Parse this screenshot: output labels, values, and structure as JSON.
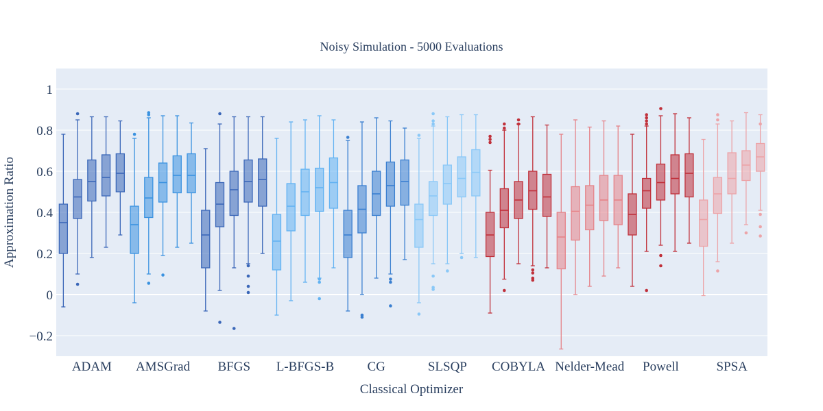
{
  "chart_data": {
    "type": "box",
    "title": "Noisy Simulation - 5000 Evaluations",
    "xlabel": "Classical Optimizer",
    "ylabel": "Approximation Ratio",
    "ylim": [
      -0.3,
      1.1
    ],
    "yticks": [
      -0.2,
      0,
      0.2,
      0.4,
      0.6,
      0.8,
      1
    ],
    "ytick_labels": [
      "−0.2",
      "0",
      "0.2",
      "0.4",
      "0.6",
      "0.8",
      "1"
    ],
    "grid": true,
    "background": "#e5ecf6",
    "categories": [
      "ADAM",
      "AMSGrad",
      "BFGS",
      "L-BFGS-B",
      "CG",
      "SLSQP",
      "COBYLA",
      "Nelder-Mead",
      "Powell",
      "SPSA"
    ],
    "groups": [
      {
        "name": "ADAM",
        "color": "#3b67b8",
        "boxes": [
          {
            "lf": -0.06,
            "q1": 0.2,
            "med": 0.35,
            "q3": 0.44,
            "uf": 0.78,
            "out": []
          },
          {
            "lf": 0.1,
            "q1": 0.37,
            "med": 0.475,
            "q3": 0.56,
            "uf": 0.85,
            "out": [
              0.05,
              0.88
            ]
          },
          {
            "lf": 0.18,
            "q1": 0.455,
            "med": 0.55,
            "q3": 0.655,
            "uf": 0.865,
            "out": []
          },
          {
            "lf": 0.23,
            "q1": 0.48,
            "med": 0.57,
            "q3": 0.68,
            "uf": 0.865,
            "out": []
          },
          {
            "lf": 0.29,
            "q1": 0.5,
            "med": 0.59,
            "q3": 0.685,
            "uf": 0.845,
            "out": []
          }
        ]
      },
      {
        "name": "AMSGrad",
        "color": "#3a92e0",
        "boxes": [
          {
            "lf": -0.04,
            "q1": 0.2,
            "med": 0.34,
            "q3": 0.43,
            "uf": 0.76,
            "out": [
              0.78
            ]
          },
          {
            "lf": 0.1,
            "q1": 0.375,
            "med": 0.47,
            "q3": 0.57,
            "uf": 0.86,
            "out": [
              0.055,
              0.875,
              0.885
            ]
          },
          {
            "lf": 0.19,
            "q1": 0.45,
            "med": 0.545,
            "q3": 0.64,
            "uf": 0.87,
            "out": [
              0.095
            ]
          },
          {
            "lf": 0.23,
            "q1": 0.495,
            "med": 0.58,
            "q3": 0.675,
            "uf": 0.87,
            "out": []
          },
          {
            "lf": 0.25,
            "q1": 0.495,
            "med": 0.58,
            "q3": 0.685,
            "uf": 0.835,
            "out": []
          }
        ]
      },
      {
        "name": "BFGS",
        "color": "#3b67b8",
        "boxes": [
          {
            "lf": -0.08,
            "q1": 0.13,
            "med": 0.29,
            "q3": 0.41,
            "uf": 0.71,
            "out": []
          },
          {
            "lf": 0.02,
            "q1": 0.33,
            "med": 0.44,
            "q3": 0.545,
            "uf": 0.83,
            "out": [
              -0.135,
              0.88
            ]
          },
          {
            "lf": 0.13,
            "q1": 0.385,
            "med": 0.51,
            "q3": 0.6,
            "uf": 0.865,
            "out": [
              -0.165
            ]
          },
          {
            "lf": 0.15,
            "q1": 0.45,
            "med": 0.55,
            "q3": 0.655,
            "uf": 0.865,
            "out": [
              0.01,
              0.04,
              0.09,
              0.14
            ]
          },
          {
            "lf": 0.2,
            "q1": 0.43,
            "med": 0.56,
            "q3": 0.66,
            "uf": 0.865,
            "out": []
          }
        ]
      },
      {
        "name": "L-BFGS-B",
        "color": "#62b2f2",
        "boxes": [
          {
            "lf": -0.1,
            "q1": 0.12,
            "med": 0.26,
            "q3": 0.39,
            "uf": 0.76,
            "out": []
          },
          {
            "lf": -0.03,
            "q1": 0.31,
            "med": 0.43,
            "q3": 0.54,
            "uf": 0.84,
            "out": []
          },
          {
            "lf": 0.06,
            "q1": 0.385,
            "med": 0.5,
            "q3": 0.61,
            "uf": 0.85,
            "out": []
          },
          {
            "lf": 0.08,
            "q1": 0.405,
            "med": 0.52,
            "q3": 0.615,
            "uf": 0.87,
            "out": [
              -0.02,
              0.06,
              0.075
            ]
          },
          {
            "lf": 0.13,
            "q1": 0.42,
            "med": 0.545,
            "q3": 0.665,
            "uf": 0.85,
            "out": []
          }
        ]
      },
      {
        "name": "CG",
        "color": "#3a7fd0",
        "boxes": [
          {
            "lf": -0.08,
            "q1": 0.18,
            "med": 0.29,
            "q3": 0.41,
            "uf": 0.75,
            "out": [
              0.765
            ]
          },
          {
            "lf": 0.0,
            "q1": 0.3,
            "med": 0.415,
            "q3": 0.53,
            "uf": 0.84,
            "out": [
              -0.1,
              -0.11
            ]
          },
          {
            "lf": 0.08,
            "q1": 0.385,
            "med": 0.49,
            "q3": 0.6,
            "uf": 0.86,
            "out": []
          },
          {
            "lf": 0.1,
            "q1": 0.43,
            "med": 0.53,
            "q3": 0.645,
            "uf": 0.845,
            "out": [
              -0.055,
              0.06,
              0.075
            ]
          },
          {
            "lf": 0.17,
            "q1": 0.435,
            "med": 0.55,
            "q3": 0.655,
            "uf": 0.81,
            "out": []
          }
        ]
      },
      {
        "name": "SLSQP",
        "color": "#8ac8f7",
        "boxes": [
          {
            "lf": -0.04,
            "q1": 0.23,
            "med": 0.365,
            "q3": 0.44,
            "uf": 0.76,
            "out": [
              -0.095,
              0.775
            ]
          },
          {
            "lf": 0.15,
            "q1": 0.385,
            "med": 0.48,
            "q3": 0.55,
            "uf": 0.82,
            "out": [
              0.025,
              0.035,
              0.09,
              0.83,
              0.845,
              0.88
            ]
          },
          {
            "lf": 0.15,
            "q1": 0.44,
            "med": 0.54,
            "q3": 0.63,
            "uf": 0.865,
            "out": [
              0.115
            ]
          },
          {
            "lf": 0.2,
            "q1": 0.475,
            "med": 0.565,
            "q3": 0.67,
            "uf": 0.875,
            "out": [
              0.18
            ]
          },
          {
            "lf": 0.18,
            "q1": 0.48,
            "med": 0.595,
            "q3": 0.705,
            "uf": 0.875,
            "out": []
          }
        ]
      },
      {
        "name": "COBYLA",
        "color": "#c0303a",
        "boxes": [
          {
            "lf": -0.09,
            "q1": 0.185,
            "med": 0.29,
            "q3": 0.4,
            "uf": 0.605,
            "out": [
              0.74,
              0.755,
              0.77
            ]
          },
          {
            "lf": 0.075,
            "q1": 0.325,
            "med": 0.41,
            "q3": 0.515,
            "uf": 0.8,
            "out": [
              0.02,
              0.81,
              0.83
            ]
          },
          {
            "lf": 0.15,
            "q1": 0.37,
            "med": 0.46,
            "q3": 0.55,
            "uf": 0.83,
            "out": [
              0.83,
              0.85
            ]
          },
          {
            "lf": 0.14,
            "q1": 0.415,
            "med": 0.505,
            "q3": 0.6,
            "uf": 0.865,
            "out": [
              0.07,
              0.08,
              0.105,
              0.12
            ]
          },
          {
            "lf": 0.13,
            "q1": 0.38,
            "med": 0.475,
            "q3": 0.585,
            "uf": 0.825,
            "out": []
          }
        ]
      },
      {
        "name": "Nelder-Mead",
        "color": "#e58389",
        "boxes": [
          {
            "lf": -0.265,
            "q1": 0.125,
            "med": 0.28,
            "q3": 0.4,
            "uf": 0.78,
            "out": []
          },
          {
            "lf": 0.0,
            "q1": 0.265,
            "med": 0.405,
            "q3": 0.525,
            "uf": 0.85,
            "out": []
          },
          {
            "lf": 0.04,
            "q1": 0.315,
            "med": 0.435,
            "q3": 0.53,
            "uf": 0.815,
            "out": []
          },
          {
            "lf": 0.09,
            "q1": 0.36,
            "med": 0.46,
            "q3": 0.58,
            "uf": 0.845,
            "out": []
          },
          {
            "lf": 0.13,
            "q1": 0.34,
            "med": 0.46,
            "q3": 0.58,
            "uf": 0.82,
            "out": []
          }
        ]
      },
      {
        "name": "Powell",
        "color": "#c0303a",
        "boxes": [
          {
            "lf": 0.04,
            "q1": 0.29,
            "med": 0.39,
            "q3": 0.49,
            "uf": 0.78,
            "out": []
          },
          {
            "lf": 0.21,
            "q1": 0.42,
            "med": 0.505,
            "q3": 0.565,
            "uf": 0.82,
            "out": [
              0.02,
              0.83,
              0.845,
              0.86,
              0.875
            ]
          },
          {
            "lf": 0.24,
            "q1": 0.46,
            "med": 0.545,
            "q3": 0.635,
            "uf": 0.87,
            "out": [
              0.14,
              0.19,
              0.905
            ]
          },
          {
            "lf": 0.21,
            "q1": 0.49,
            "med": 0.565,
            "q3": 0.68,
            "uf": 0.88,
            "out": []
          },
          {
            "lf": 0.25,
            "q1": 0.475,
            "med": 0.59,
            "q3": 0.685,
            "uf": 0.86,
            "out": []
          }
        ]
      },
      {
        "name": "SPSA",
        "color": "#eca4a8",
        "boxes": [
          {
            "lf": -0.005,
            "q1": 0.235,
            "med": 0.365,
            "q3": 0.46,
            "uf": 0.755,
            "out": []
          },
          {
            "lf": 0.16,
            "q1": 0.395,
            "med": 0.49,
            "q3": 0.57,
            "uf": 0.83,
            "out": [
              0.115,
              0.85,
              0.875
            ]
          },
          {
            "lf": 0.25,
            "q1": 0.49,
            "med": 0.565,
            "q3": 0.69,
            "uf": 0.845,
            "out": []
          },
          {
            "lf": 0.34,
            "q1": 0.555,
            "med": 0.63,
            "q3": 0.7,
            "uf": 0.885,
            "out": [
              0.3
            ]
          },
          {
            "lf": 0.41,
            "q1": 0.6,
            "med": 0.67,
            "q3": 0.735,
            "uf": 0.875,
            "out": [
              0.285,
              0.33,
              0.39,
              0.83
            ]
          }
        ]
      }
    ]
  }
}
